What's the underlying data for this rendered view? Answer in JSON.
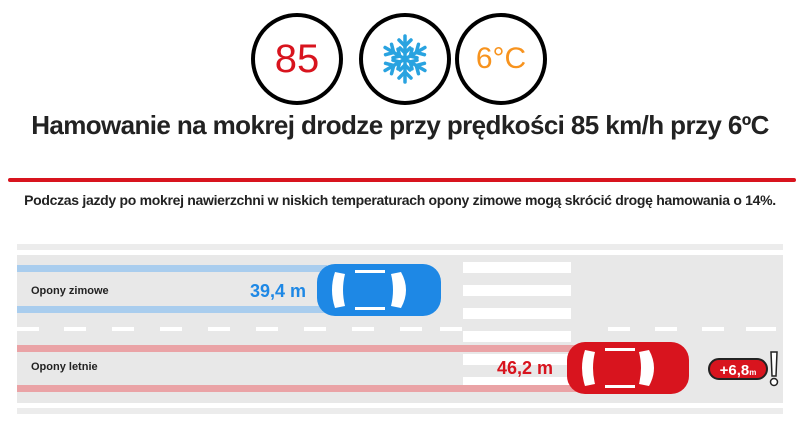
{
  "header": {
    "speed": "85",
    "weather_icon": "snowflake-icon",
    "temperature": "6°C",
    "title": "Hamowanie na mokrej drodze przy prędkości 85 km/h przy 6ºC",
    "subtitle": "Podczas jazdy po mokrej nawierzchni w niskich temperaturach opony zimowe mogą skrócić drogę hamowania o 14%."
  },
  "lanes": [
    {
      "label": "Opony zimowe",
      "distance": "39,4 m",
      "color": "#1e88e5",
      "trail_color": "#a9cdee"
    },
    {
      "label": "Opony letnie",
      "distance": "46,2 m",
      "color": "#d8141e",
      "trail_color": "#eaa3a6"
    }
  ],
  "difference": {
    "value": "+6,8",
    "unit": "m"
  },
  "colors": {
    "accent": "#d8141e",
    "road": "#e8e8e8",
    "temperature": "#f7931e",
    "snow": "#29a3e0"
  }
}
